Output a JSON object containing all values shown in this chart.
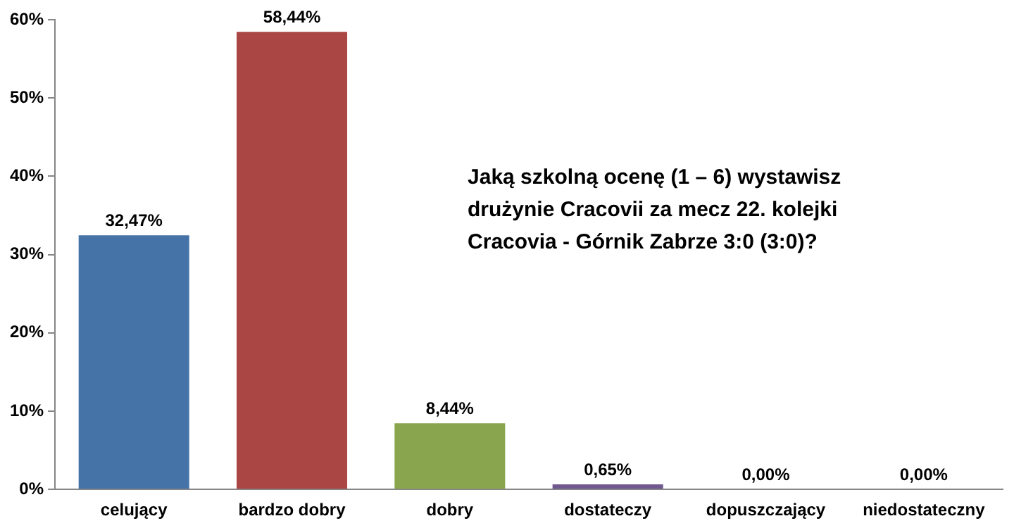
{
  "chart_data": {
    "type": "bar",
    "categories": [
      "celujący",
      "bardzo dobry",
      "dobry",
      "dostateczy",
      "dopuszczający",
      "niedostateczny"
    ],
    "values": [
      32.47,
      58.44,
      8.44,
      0.65,
      0,
      0
    ],
    "colors": [
      "#4572a7",
      "#aa4643",
      "#89a54e",
      "#71588f",
      "#4198af",
      "#db843d"
    ],
    "value_labels": [
      "32,47%",
      "58,44%",
      "8,44%",
      "0,65%",
      "0,00%",
      "0,00%"
    ],
    "ylim": [
      0,
      60
    ],
    "yticks": [
      {
        "value": 0,
        "label": "0%"
      },
      {
        "value": 10,
        "label": "10%"
      },
      {
        "value": 20,
        "label": "20%"
      },
      {
        "value": 30,
        "label": "30%"
      },
      {
        "value": 40,
        "label": "40%"
      },
      {
        "value": 50,
        "label": "50%"
      },
      {
        "value": 60,
        "label": "60%"
      }
    ],
    "annotations": [
      "Jaką szkolną ocenę (1 – 6) wystawisz\ndrużynie Cracovii za mecz 22. kolejki\nCracovia - Górnik Zabrze 3:0 (3:0)?"
    ],
    "grid": false,
    "legend": false
  }
}
